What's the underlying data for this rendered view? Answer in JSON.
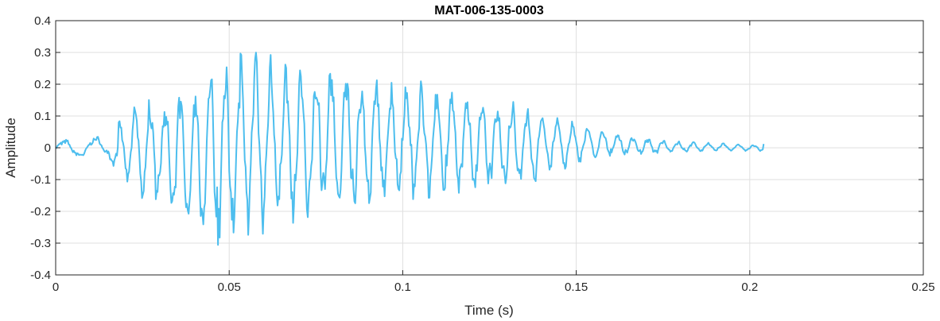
{
  "chart_data": {
    "type": "line",
    "title": "MAT-006-135-0003",
    "xlabel": "Time (s)",
    "ylabel": "Amplitude",
    "xlim": [
      0,
      0.25
    ],
    "ylim": [
      -0.4,
      0.4
    ],
    "x_ticks": [
      0,
      0.05,
      0.1,
      0.15,
      0.2,
      0.25
    ],
    "x_tick_labels": [
      "0",
      "0.05",
      "0.1",
      "0.15",
      "0.2",
      "0.25"
    ],
    "y_ticks": [
      0.4,
      0.3,
      0.2,
      0.1,
      0,
      -0.1,
      -0.2,
      -0.3,
      -0.4
    ],
    "y_tick_labels": [
      "0.4",
      "0.3",
      "0.2",
      "0.1",
      "0",
      "-0.1",
      "-0.2",
      "-0.3",
      "-0.4"
    ],
    "grid": true,
    "line_color": "#4DBEEE",
    "series": [
      {
        "envelope": {
          "t": [
            0,
            0.005,
            0.01,
            0.015,
            0.018,
            0.02,
            0.022,
            0.025,
            0.03,
            0.035,
            0.04,
            0.045,
            0.05,
            0.055,
            0.06,
            0.065,
            0.07,
            0.08,
            0.09,
            0.1,
            0.11,
            0.12,
            0.13,
            0.14,
            0.15,
            0.16,
            0.17,
            0.18,
            0.19,
            0.2,
            0.204
          ],
          "upper": [
            0.02,
            0.03,
            0.03,
            0.04,
            0.08,
            0.1,
            0.13,
            0.15,
            0.16,
            0.17,
            0.2,
            0.25,
            0.3,
            0.32,
            0.3,
            0.28,
            0.26,
            0.25,
            0.23,
            0.22,
            0.2,
            0.17,
            0.15,
            0.12,
            0.08,
            0.05,
            0.03,
            0.02,
            0.015,
            0.01,
            0.01
          ],
          "lower": [
            -0.03,
            -0.03,
            -0.03,
            -0.04,
            -0.08,
            -0.1,
            -0.12,
            -0.16,
            -0.18,
            -0.22,
            -0.27,
            -0.32,
            -0.3,
            -0.28,
            -0.27,
            -0.25,
            -0.23,
            -0.2,
            -0.19,
            -0.18,
            -0.15,
            -0.14,
            -0.13,
            -0.1,
            -0.05,
            -0.03,
            -0.02,
            -0.015,
            -0.01,
            -0.01,
            -0.01
          ]
        },
        "samples": 820
      }
    ]
  }
}
